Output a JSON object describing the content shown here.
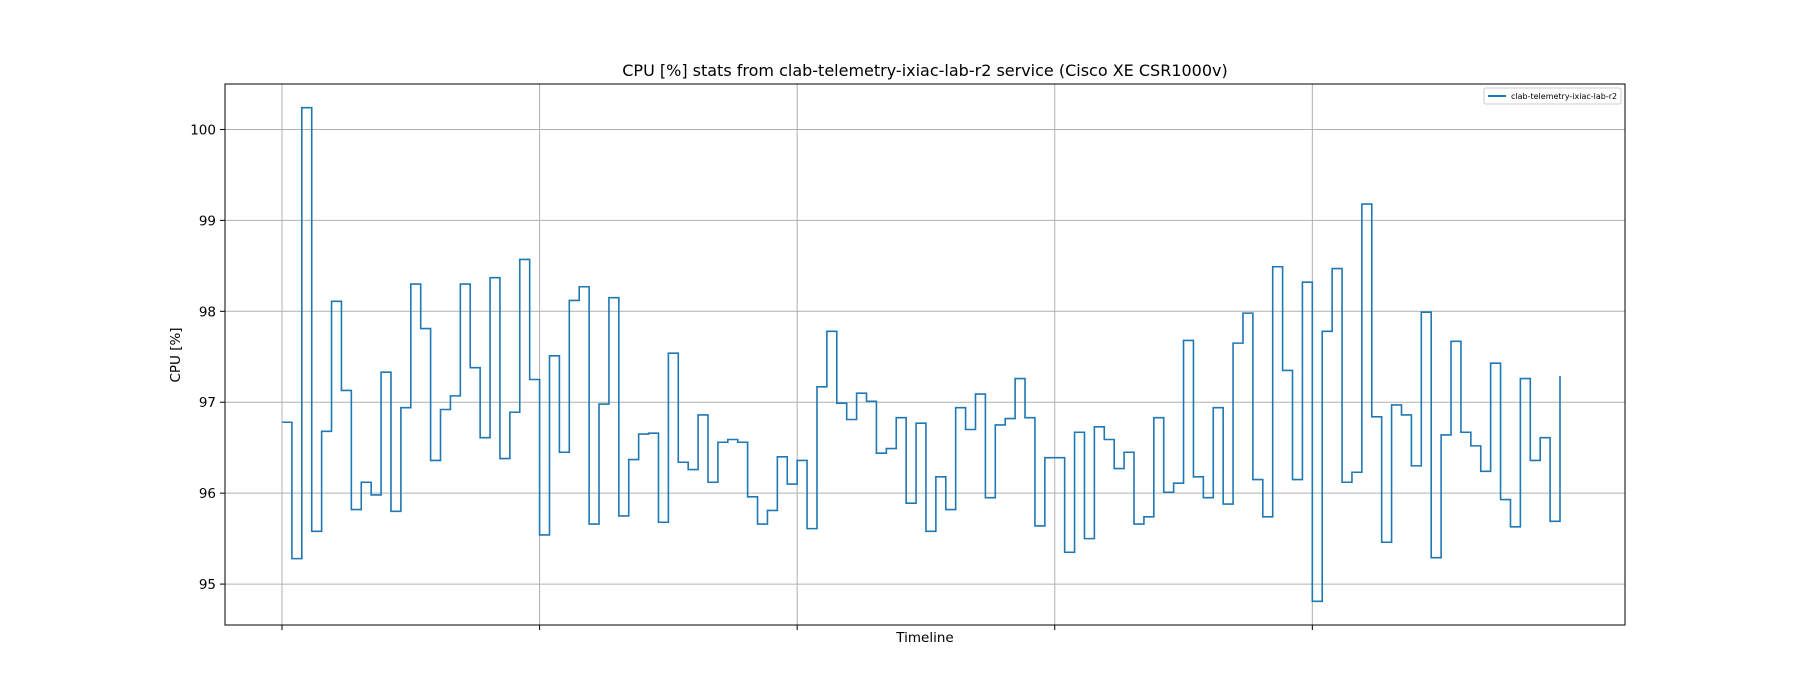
{
  "chart_data": {
    "type": "line",
    "title": "CPU [%] stats from clab-telemetry-ixiac-lab-r2 service (Cisco XE CSR1000v)",
    "xlabel": "Timeline",
    "ylabel": "CPU [%]",
    "ylim": [
      94.55,
      100.5
    ],
    "yticks": [
      95,
      96,
      97,
      98,
      99,
      100
    ],
    "x_gridlines": 5,
    "grid": true,
    "step": true,
    "legend": "top-right",
    "series": [
      {
        "name": "clab-telemetry-ixiac-lab-r2",
        "color": "#1f77b4",
        "values": [
          96.78,
          95.28,
          100.24,
          95.58,
          96.68,
          98.11,
          97.13,
          95.82,
          96.12,
          95.98,
          97.33,
          95.8,
          96.94,
          98.3,
          97.81,
          96.36,
          96.92,
          97.07,
          98.3,
          97.38,
          96.61,
          98.37,
          96.38,
          96.89,
          98.57,
          97.25,
          95.54,
          97.51,
          96.45,
          98.12,
          98.27,
          95.66,
          96.98,
          98.15,
          95.75,
          96.37,
          96.65,
          96.66,
          95.68,
          97.54,
          96.34,
          96.26,
          96.86,
          96.12,
          96.56,
          96.59,
          96.56,
          95.96,
          95.66,
          95.81,
          96.4,
          96.1,
          96.36,
          95.61,
          97.17,
          97.78,
          96.99,
          96.81,
          97.1,
          97.01,
          96.44,
          96.49,
          96.83,
          95.89,
          96.77,
          95.58,
          96.18,
          95.82,
          96.94,
          96.7,
          97.09,
          95.95,
          96.75,
          96.82,
          97.26,
          96.83,
          95.64,
          96.39,
          96.39,
          95.35,
          96.67,
          95.5,
          96.73,
          96.59,
          96.27,
          96.45,
          95.66,
          95.74,
          96.83,
          96.01,
          96.11,
          97.68,
          96.18,
          95.95,
          96.94,
          95.88,
          97.65,
          97.98,
          96.15,
          95.74,
          98.49,
          97.35,
          96.15,
          98.32,
          94.81,
          97.78,
          98.47,
          96.12,
          96.23,
          99.18,
          96.84,
          95.46,
          96.97,
          96.86,
          96.3,
          97.99,
          95.29,
          96.64,
          97.67,
          96.67,
          96.52,
          96.24,
          97.43,
          95.93,
          95.63,
          97.26,
          96.36,
          96.61,
          95.69,
          97.29
        ]
      }
    ]
  }
}
